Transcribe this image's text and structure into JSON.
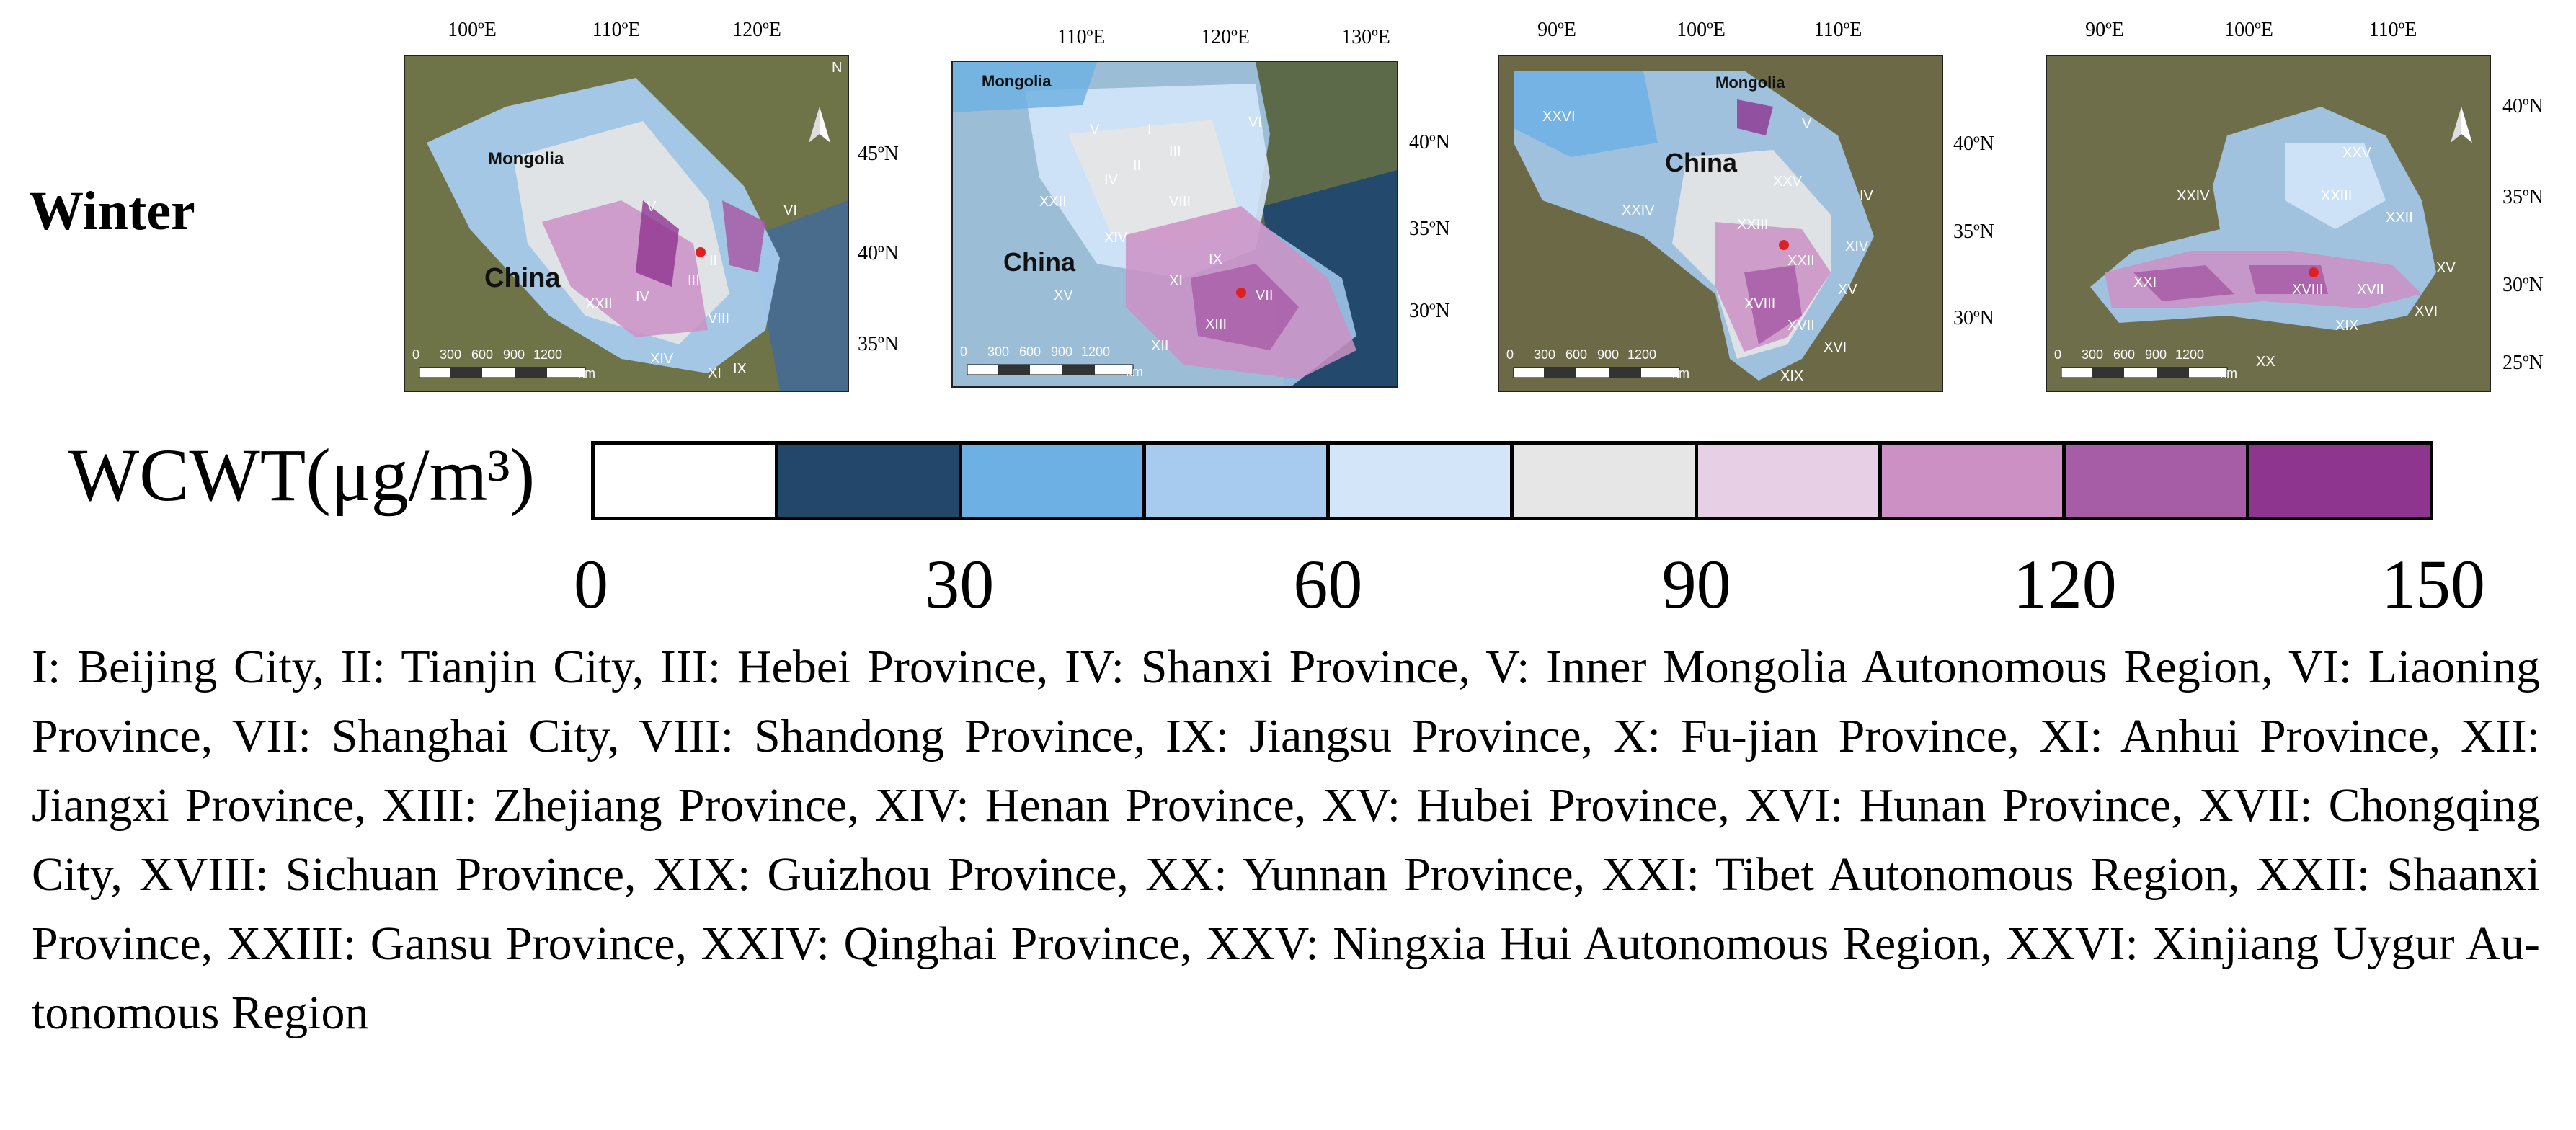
{
  "season_label": "Winter",
  "maps": [
    {
      "lon_ticks": [
        "100ºE",
        "110ºE",
        "120ºE"
      ],
      "lat_ticks": [
        "45ºN",
        "40ºN",
        "35ºN"
      ],
      "place_labels": [
        "Mongolia",
        "China"
      ],
      "region_labels": [
        "II",
        "III",
        "IV",
        "V",
        "VI",
        "VIII",
        "IX",
        "XI",
        "XIV",
        "XXII"
      ],
      "scale_ticks": [
        "0",
        "300",
        "600",
        "900",
        "1200"
      ],
      "scale_unit": "km"
    },
    {
      "lon_ticks": [
        "110ºE",
        "120ºE",
        "130ºE"
      ],
      "lat_ticks": [
        "40ºN",
        "35ºN",
        "30ºN"
      ],
      "place_labels": [
        "Mongolia",
        "China"
      ],
      "region_labels": [
        "I",
        "II",
        "III",
        "IV",
        "V",
        "VI",
        "VII",
        "VIII",
        "IX",
        "XI",
        "XII",
        "XIII",
        "XIV",
        "XV",
        "XXII"
      ],
      "scale_ticks": [
        "0",
        "300",
        "600",
        "900",
        "1200"
      ],
      "scale_unit": "km"
    },
    {
      "lon_ticks": [
        "90ºE",
        "100ºE",
        "110ºE"
      ],
      "lat_ticks": [
        "40ºN",
        "35ºN",
        "30ºN"
      ],
      "place_labels": [
        "Mongolia",
        "China"
      ],
      "region_labels": [
        "IV",
        "V",
        "XIV",
        "XV",
        "XVI",
        "XVII",
        "XVIII",
        "XIX",
        "XXII",
        "XXIII",
        "XXIV",
        "XXV",
        "XXVI"
      ],
      "scale_ticks": [
        "0",
        "300",
        "600",
        "900",
        "1200"
      ],
      "scale_unit": "km"
    },
    {
      "lon_ticks": [
        "90ºE",
        "100ºE",
        "110ºE"
      ],
      "lat_ticks": [
        "40ºN",
        "35ºN",
        "30ºN",
        "25ºN"
      ],
      "place_labels": [],
      "region_labels": [
        "XV",
        "XVI",
        "XVII",
        "XVIII",
        "XIX",
        "XX",
        "XXI",
        "XXII",
        "XXIII",
        "XXIV",
        "XXV"
      ],
      "scale_ticks": [
        "0",
        "300",
        "600",
        "900",
        "1200"
      ],
      "scale_unit": "km"
    }
  ],
  "legend": {
    "title": "WCWT(μg/m³)",
    "colors": [
      "#ffffff",
      "#23466b",
      "#6cb0e4",
      "#a6cbee",
      "#d3e6f9",
      "#e6e6e6",
      "#e7cfe6",
      "#cc90c5",
      "#a75ca6",
      "#8e3590"
    ],
    "tick_labels": [
      "0",
      "30",
      "60",
      "90",
      "120",
      "150"
    ],
    "tick_values": [
      0,
      30,
      60,
      90,
      120,
      150
    ]
  },
  "caption": "I: Beijing City, II: Tianjin City, III: Hebei Province, IV: Shanxi Province, V: Inner Mongolia Autonomous Region, VI: Liaoning Province, VII: Shanghai City, VIII: Shandong Province, IX: Jiangsu Province, X: Fu-jian Province, XI: Anhui Province, XII: Jiangxi Province, XIII: Zhejiang Province, XIV: Henan Province, XV: Hubei Province, XVI: Hunan Province, XVII: Chongqing City, XVIII: Sichuan Province, XIX: Guizhou Province, XX: Yunnan Province, XXI: Tibet Autonomous Region, XXII: Shaanxi Province, XXIII: Gansu Province, XXIV: Qinghai Province, XXV: Ningxia Hui Autonomous Region, XXVI: Xinjiang Uygur Au-tonomous Region"
}
